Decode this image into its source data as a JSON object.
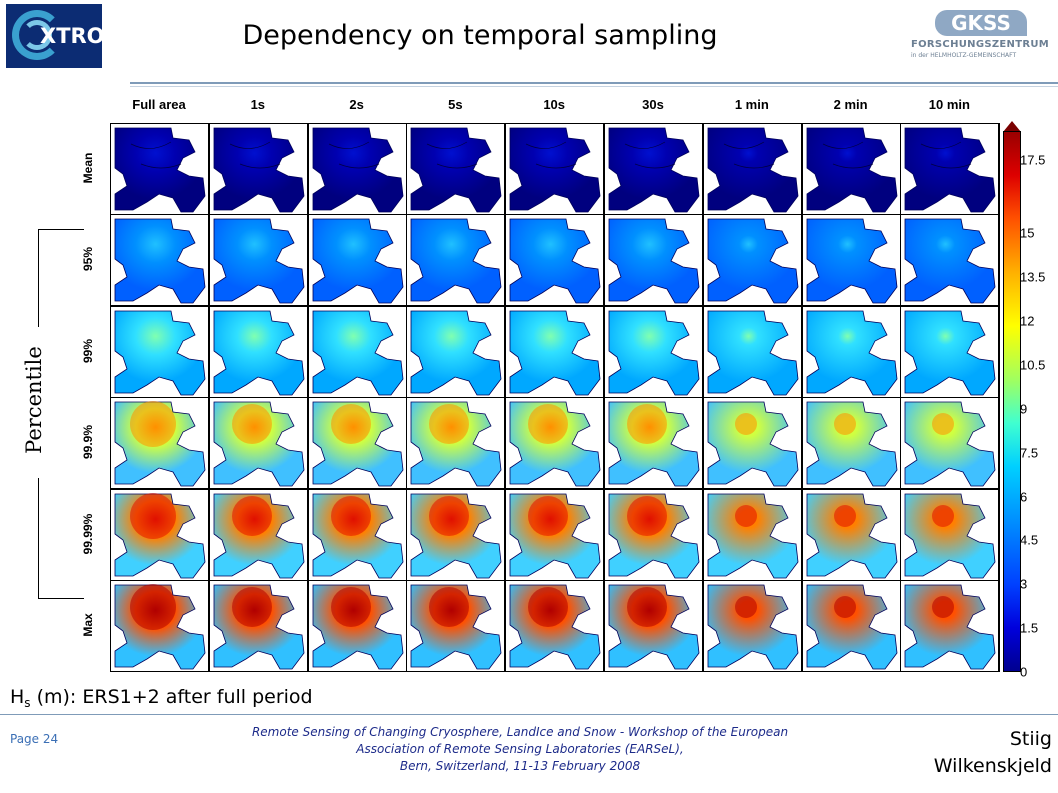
{
  "header": {
    "title": "Dependency on temporal sampling",
    "logo_left_text": "XTROP",
    "logo_right": {
      "name": "GKSS",
      "line1": "FORSCHUNGSZENTRUM",
      "line2": "in der HELMHOLTZ-GEMEINSCHAFT"
    }
  },
  "figure": {
    "columns": [
      "Full area",
      "1s",
      "2s",
      "5s",
      "10s",
      "30s",
      "1 min",
      "2 min",
      "10 min"
    ],
    "rows": [
      "Mean",
      "95%",
      "99%",
      "99.9%",
      "99.99%",
      "Max"
    ],
    "group_label": "Percentile",
    "colorbar_ticks": [
      "17.5",
      "15",
      "13.5",
      "12",
      "10.5",
      "9",
      "7.5",
      "6",
      "4.5",
      "3",
      "1.5",
      "0"
    ],
    "caption_main": "H",
    "caption_sub": "s",
    "caption_rest": " (m): ERS1+2 after full period"
  },
  "footer": {
    "page": "Page 24",
    "line1": "Remote Sensing of Changing Cryosphere, LandIce and Snow - Workshop of the European",
    "line2": "Association of Remote Sensing Laboratories (EARSeL),",
    "line3": "Bern, Switzerland, 11-13 February 2008",
    "author_line1": "Stiig",
    "author_line2": "Wilkenskjeld"
  }
}
